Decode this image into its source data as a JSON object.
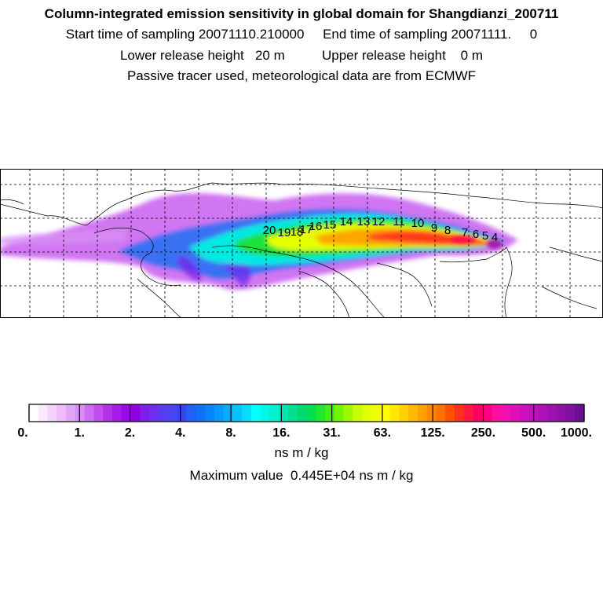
{
  "title": "Column-integrated emission sensitivity in global domain for Shangdianzi_200711",
  "subtitle_lines": [
    "Start time of sampling 20071110.210000     End time of sampling 20071111.     0",
    "Lower release height   20 m          Upper release height    0 m",
    "Passive tracer used, meteorological data are from ECMWF"
  ],
  "colorbar": {
    "units": "ns m / kg",
    "max_label": "Maximum value  0.445E+04 ns m / kg",
    "tick_labels": [
      "0.",
      "1.",
      "2.",
      "4.",
      "8.",
      "16.",
      "31.",
      "63.",
      "125.",
      "250.",
      "500.",
      "1000."
    ],
    "colors": [
      "#ffffff",
      "#fae8fd",
      "#f3d2fb",
      "#ecbbf8",
      "#e2a5f6",
      "#d98ef4",
      "#cc6cf0",
      "#c04eee",
      "#b431ec",
      "#a81aea",
      "#9a0ae8",
      "#9000e4",
      "#7e20e8",
      "#6c30ec",
      "#5a3cf0",
      "#4844f4",
      "#3444f6",
      "#2060f8",
      "#1070fa",
      "#0a84fa",
      "#0898fb",
      "#08acfb",
      "#08c4fa",
      "#08dcf8",
      "#00ffff",
      "#00f8e8",
      "#00f0d0",
      "#00e8b0",
      "#00e090",
      "#00d870",
      "#00e050",
      "#20e830",
      "#40f010",
      "#70f400",
      "#a0f800",
      "#c8fc00",
      "#e0ff00",
      "#f0ff00",
      "#ffff00",
      "#ffe800",
      "#ffd000",
      "#ffb800",
      "#ffa000",
      "#ff8800",
      "#ff7000",
      "#ff5000",
      "#ff3020",
      "#ff1840",
      "#ff0060",
      "#ff0080",
      "#ff10a0",
      "#f010b0",
      "#e010b8",
      "#d010c0",
      "#c010c0",
      "#b010b8",
      "#a010b0",
      "#9010a8",
      "#8010a0",
      "#6a1090"
    ]
  },
  "map": {
    "labels": [
      "20",
      "19",
      "18",
      "17",
      "16",
      "15",
      "14",
      "13",
      "12",
      "11",
      "10",
      "9",
      "8",
      "7",
      "6",
      "5",
      "4"
    ]
  },
  "chart_data": {
    "type": "heatmap",
    "title": "Column-integrated emission sensitivity in global domain for Shangdianzi_200711",
    "colorbar_levels": [
      0,
      1,
      2,
      4,
      8,
      16,
      31,
      63,
      125,
      250,
      500,
      1000
    ],
    "units": "ns m / kg",
    "max_value": 4450,
    "trajectory_labels": [
      "20",
      "19",
      "18",
      "17",
      "16",
      "15",
      "14",
      "13",
      "12",
      "11",
      "10",
      "9",
      "8",
      "7",
      "6",
      "5",
      "4"
    ]
  }
}
